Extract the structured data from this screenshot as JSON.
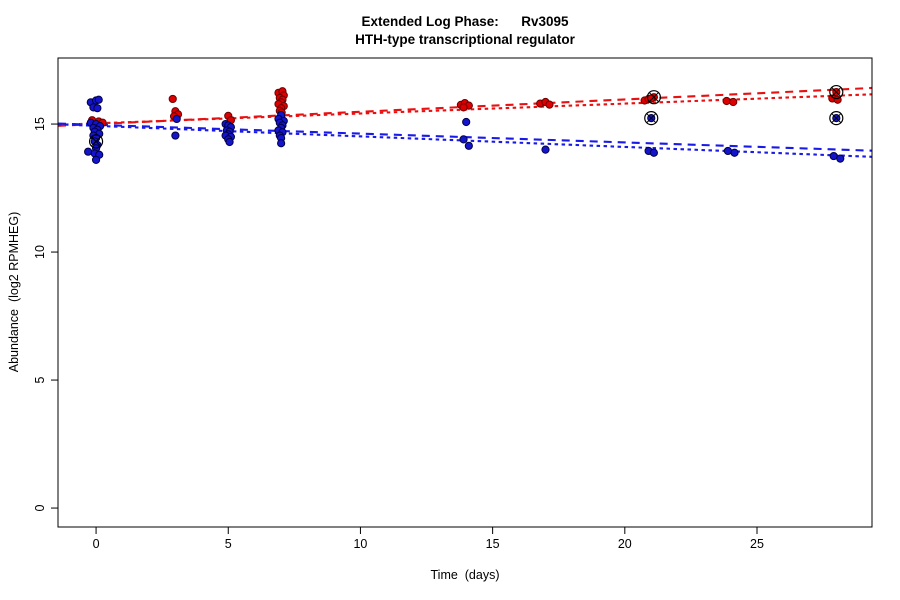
{
  "chart_data": {
    "type": "scatter",
    "title": "Extended Log Phase:      Rv3095",
    "subtitle": "HTH-type transcriptional regulator",
    "xlabel": "Time  (days)",
    "ylabel": "Abundance  (log2 RPMHEG)",
    "xlim": [
      -1.44,
      29.35
    ],
    "ylim": [
      -0.74,
      17.58
    ],
    "x_ticks": [
      0,
      5,
      10,
      15,
      20,
      25
    ],
    "y_ticks": [
      0,
      5,
      10,
      15
    ],
    "grid": false,
    "legend": "none",
    "series": [
      {
        "name": "red-condition",
        "color": "#dd0000",
        "edge": "#6b0000",
        "points": [
          [
            -0.15,
            15.15
          ],
          [
            0.1,
            15.1
          ],
          [
            0.25,
            15.05
          ],
          [
            -0.05,
            14.98
          ],
          [
            2.9,
            15.98
          ],
          [
            3.0,
            15.5
          ],
          [
            3.1,
            15.38
          ],
          [
            2.95,
            15.3
          ],
          [
            5.0,
            15.32
          ],
          [
            5.1,
            15.15
          ],
          [
            6.9,
            16.22
          ],
          [
            7.05,
            16.28
          ],
          [
            7.1,
            16.12
          ],
          [
            6.95,
            16.02
          ],
          [
            7.05,
            15.95
          ],
          [
            7.0,
            15.85
          ],
          [
            6.9,
            15.78
          ],
          [
            7.1,
            15.7
          ],
          [
            7.0,
            15.62
          ],
          [
            6.95,
            15.52
          ],
          [
            7.02,
            15.45
          ],
          [
            13.8,
            15.75
          ],
          [
            13.95,
            15.82
          ],
          [
            14.1,
            15.72
          ],
          [
            13.9,
            15.65
          ],
          [
            16.8,
            15.8
          ],
          [
            17.0,
            15.86
          ],
          [
            17.15,
            15.76
          ],
          [
            20.75,
            15.92
          ],
          [
            20.9,
            15.98
          ],
          [
            21.1,
            16.05
          ],
          [
            21.0,
            16.0
          ],
          [
            23.85,
            15.9
          ],
          [
            24.1,
            15.86
          ],
          [
            28.0,
            16.25
          ],
          [
            27.85,
            16.0
          ],
          [
            28.05,
            15.95
          ]
        ]
      },
      {
        "name": "blue-condition",
        "color": "#1414cc",
        "edge": "#000046",
        "points": [
          [
            -0.2,
            15.85
          ],
          [
            0.0,
            15.92
          ],
          [
            0.1,
            15.95
          ],
          [
            -0.1,
            15.65
          ],
          [
            0.05,
            15.62
          ],
          [
            -0.2,
            15.05
          ],
          [
            0.0,
            15.0
          ],
          [
            0.15,
            14.92
          ],
          [
            -0.1,
            14.85
          ],
          [
            0.05,
            14.78
          ],
          [
            -0.05,
            14.7
          ],
          [
            0.12,
            14.62
          ],
          [
            -0.1,
            14.55
          ],
          [
            0.0,
            14.45
          ],
          [
            -0.05,
            14.32
          ],
          [
            0.05,
            14.18
          ],
          [
            0.0,
            14.05
          ],
          [
            -0.3,
            13.92
          ],
          [
            -0.05,
            13.85
          ],
          [
            0.12,
            13.8
          ],
          [
            0.0,
            13.6
          ],
          [
            3.05,
            15.2
          ],
          [
            3.0,
            14.55
          ],
          [
            4.9,
            15.0
          ],
          [
            5.0,
            14.95
          ],
          [
            5.1,
            14.88
          ],
          [
            4.95,
            14.75
          ],
          [
            5.05,
            14.7
          ],
          [
            5.0,
            14.6
          ],
          [
            4.9,
            14.55
          ],
          [
            5.1,
            14.5
          ],
          [
            5.0,
            14.4
          ],
          [
            5.05,
            14.3
          ],
          [
            7.0,
            15.35
          ],
          [
            6.9,
            15.2
          ],
          [
            7.1,
            15.12
          ],
          [
            6.95,
            15.05
          ],
          [
            7.05,
            14.95
          ],
          [
            7.0,
            14.85
          ],
          [
            6.9,
            14.75
          ],
          [
            7.05,
            14.68
          ],
          [
            6.95,
            14.55
          ],
          [
            7.0,
            14.45
          ],
          [
            7.0,
            14.25
          ],
          [
            14.0,
            15.08
          ],
          [
            13.9,
            14.4
          ],
          [
            14.1,
            14.15
          ],
          [
            17.0,
            14.0
          ],
          [
            21.0,
            15.23
          ],
          [
            20.9,
            13.95
          ],
          [
            21.1,
            13.88
          ],
          [
            23.9,
            13.95
          ],
          [
            24.15,
            13.88
          ],
          [
            28.0,
            15.23
          ],
          [
            27.9,
            13.75
          ],
          [
            28.15,
            13.65
          ]
        ]
      }
    ],
    "flagged_points": {
      "marker": "circle-x",
      "color": "#000000",
      "points": [
        [
          0.0,
          14.32
        ],
        [
          21.1,
          16.05
        ],
        [
          21.0,
          15.23
        ],
        [
          28.0,
          16.25
        ],
        [
          28.0,
          15.23
        ]
      ]
    },
    "trend_lines": [
      {
        "series": "red",
        "style": "longdash",
        "color": "#e81010",
        "x": [
          -1.44,
          29.35
        ],
        "y": [
          14.93,
          16.41
        ]
      },
      {
        "series": "red",
        "style": "shortdash",
        "color": "#e81010",
        "x": [
          -1.44,
          29.35
        ],
        "y": [
          14.97,
          16.16
        ]
      },
      {
        "series": "blue",
        "style": "longdash",
        "color": "#1a1ae8",
        "x": [
          -1.44,
          29.35
        ],
        "y": [
          15.02,
          13.96
        ]
      },
      {
        "series": "blue",
        "style": "shortdash",
        "color": "#1a1ae8",
        "x": [
          -1.44,
          29.35
        ],
        "y": [
          14.99,
          13.72
        ]
      }
    ],
    "axis_color": "#000000"
  }
}
